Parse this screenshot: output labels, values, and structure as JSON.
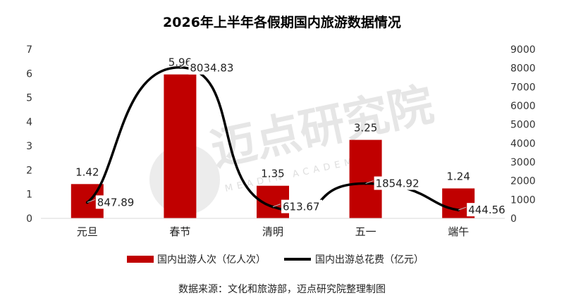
{
  "chart_data": {
    "type": "bar",
    "title": "2026年上半年各假期国内旅游数据情况",
    "categories": [
      "元旦",
      "春节",
      "清明",
      "五一",
      "端午"
    ],
    "series": [
      {
        "name": "国内出游人次（亿人次）",
        "type": "bar",
        "axis": "left",
        "values": [
          1.42,
          5.96,
          1.35,
          3.25,
          1.24
        ],
        "labels": [
          "1.42",
          "5.96",
          "1.35",
          "3.25",
          "1.24"
        ]
      },
      {
        "name": "国内出游总花费（亿元）",
        "type": "line",
        "axis": "right",
        "values": [
          847.89,
          8034.83,
          613.67,
          1854.92,
          444.56
        ],
        "labels": [
          "847.89",
          "8034.83",
          "613.67",
          "1854.92",
          "444.56"
        ]
      }
    ],
    "y_left": {
      "min": 0,
      "max": 7,
      "ticks": [
        "0",
        "1",
        "2",
        "3",
        "4",
        "5",
        "6",
        "7"
      ]
    },
    "y_right": {
      "min": 0,
      "max": 9000,
      "ticks": [
        "0",
        "1000",
        "2000",
        "3000",
        "4000",
        "5000",
        "6000",
        "7000",
        "8000",
        "9000"
      ]
    },
    "grid": false,
    "legend_position": "bottom",
    "colors": {
      "bar": "#c00000",
      "line": "#000000"
    }
  },
  "watermark": {
    "text": "迈点研究院",
    "sub": "MEADIN ACADEMY"
  },
  "source": "数据来源：文化和旅游部，迈点研究院整理制图"
}
